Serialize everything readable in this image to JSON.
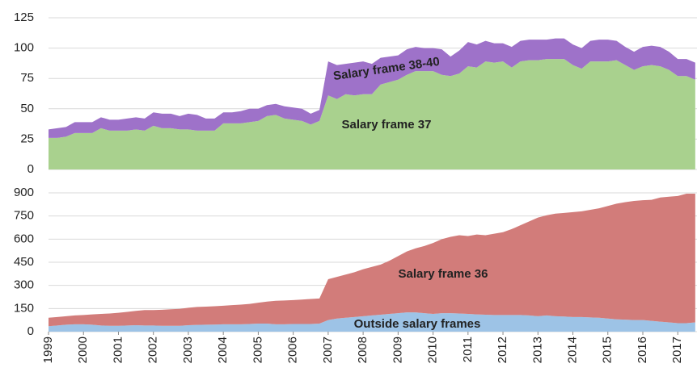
{
  "chart_data": [
    {
      "type": "stacked-area",
      "x": [
        1999,
        1999.25,
        1999.5,
        1999.75,
        2000,
        2000.25,
        2000.5,
        2000.75,
        2001,
        2001.25,
        2001.5,
        2001.75,
        2002,
        2002.25,
        2002.5,
        2002.75,
        2003,
        2003.25,
        2003.5,
        2003.75,
        2004,
        2004.25,
        2004.5,
        2004.75,
        2005,
        2005.25,
        2005.5,
        2005.75,
        2006,
        2006.25,
        2006.5,
        2006.75,
        2007,
        2007.25,
        2007.5,
        2007.75,
        2008,
        2008.25,
        2008.5,
        2008.75,
        2009,
        2009.25,
        2009.5,
        2009.75,
        2010,
        2010.25,
        2010.5,
        2010.75,
        2011,
        2011.25,
        2011.5,
        2011.75,
        2012,
        2012.25,
        2012.5,
        2012.75,
        2013,
        2013.25,
        2013.5,
        2013.75,
        2014,
        2014.25,
        2014.5,
        2014.75,
        2015,
        2015.25,
        2015.5,
        2015.75,
        2016,
        2016.25,
        2016.5,
        2016.75,
        2017,
        2017.25,
        2017.5
      ],
      "xlim": [
        1999,
        2017.55
      ],
      "ylim": [
        0,
        125
      ],
      "yticks": [
        0,
        25,
        50,
        75,
        100,
        125
      ],
      "grid": true,
      "series": [
        {
          "name": "Salary frame 37",
          "color": "#a9d18e",
          "values": [
            26,
            26,
            27,
            30,
            30,
            30,
            34,
            32,
            32,
            32,
            33,
            32,
            36,
            34,
            34,
            33,
            33,
            32,
            32,
            32,
            38,
            38,
            38,
            39,
            40,
            44,
            45,
            42,
            41,
            40,
            37,
            40,
            61,
            58,
            62,
            61,
            62,
            62,
            70,
            72,
            74,
            78,
            81,
            81,
            81,
            78,
            77,
            79,
            85,
            84,
            89,
            88,
            89,
            84,
            89,
            90,
            90,
            91,
            91,
            91,
            86,
            83,
            89,
            89,
            89,
            90,
            86,
            82,
            85,
            86,
            85,
            82,
            77,
            77,
            74
          ]
        },
        {
          "name": "Salary frame 38-40",
          "color": "#9e72c9",
          "values": [
            7,
            8,
            8,
            9,
            9,
            9,
            9,
            9,
            9,
            10,
            10,
            10,
            11,
            12,
            12,
            11,
            13,
            13,
            10,
            10,
            9,
            9,
            10,
            11,
            10,
            9,
            9,
            10,
            10,
            10,
            9,
            9,
            28,
            28,
            25,
            27,
            27,
            25,
            22,
            21,
            20,
            21,
            20,
            19,
            19,
            21,
            16,
            19,
            20,
            19,
            17,
            16,
            15,
            17,
            17,
            17,
            17,
            16,
            17,
            17,
            17,
            17,
            17,
            18,
            18,
            16,
            15,
            15,
            16,
            16,
            16,
            15,
            14,
            14,
            14
          ]
        }
      ]
    },
    {
      "type": "stacked-area",
      "x": [
        1999,
        1999.25,
        1999.5,
        1999.75,
        2000,
        2000.25,
        2000.5,
        2000.75,
        2001,
        2001.25,
        2001.5,
        2001.75,
        2002,
        2002.25,
        2002.5,
        2002.75,
        2003,
        2003.25,
        2003.5,
        2003.75,
        2004,
        2004.25,
        2004.5,
        2004.75,
        2005,
        2005.25,
        2005.5,
        2005.75,
        2006,
        2006.25,
        2006.5,
        2006.75,
        2007,
        2007.25,
        2007.5,
        2007.75,
        2008,
        2008.25,
        2008.5,
        2008.75,
        2009,
        2009.25,
        2009.5,
        2009.75,
        2010,
        2010.25,
        2010.5,
        2010.75,
        2011,
        2011.25,
        2011.5,
        2011.75,
        2012,
        2012.25,
        2012.5,
        2012.75,
        2013,
        2013.25,
        2013.5,
        2013.75,
        2014,
        2014.25,
        2014.5,
        2014.75,
        2015,
        2015.25,
        2015.5,
        2015.75,
        2016,
        2016.25,
        2016.5,
        2016.75,
        2017,
        2017.25,
        2017.5
      ],
      "xlim": [
        1999,
        2017.55
      ],
      "xticks": [
        1999,
        2000,
        2001,
        2002,
        2003,
        2004,
        2005,
        2006,
        2007,
        2008,
        2009,
        2010,
        2011,
        2012,
        2013,
        2014,
        2015,
        2016,
        2017
      ],
      "ylim": [
        0,
        900
      ],
      "yticks": [
        0,
        150,
        300,
        450,
        600,
        750,
        900
      ],
      "grid": true,
      "series": [
        {
          "name": "Outside salary frames",
          "color": "#9dc3e6",
          "values": [
            35,
            40,
            45,
            48,
            48,
            45,
            40,
            38,
            38,
            40,
            42,
            40,
            40,
            38,
            38,
            38,
            42,
            44,
            45,
            46,
            48,
            48,
            48,
            50,
            52,
            52,
            48,
            48,
            50,
            50,
            50,
            52,
            75,
            85,
            90,
            95,
            100,
            105,
            110,
            115,
            120,
            125,
            125,
            120,
            115,
            120,
            120,
            118,
            115,
            112,
            110,
            108,
            108,
            108,
            108,
            105,
            100,
            105,
            100,
            98,
            95,
            95,
            92,
            90,
            85,
            80,
            78,
            75,
            75,
            70,
            65,
            60,
            55,
            55,
            60
          ]
        },
        {
          "name": "Salary frame 36",
          "color": "#d27c7a",
          "values": [
            55,
            55,
            55,
            57,
            60,
            67,
            75,
            80,
            84,
            88,
            93,
            100,
            100,
            104,
            107,
            110,
            113,
            116,
            117,
            119,
            120,
            124,
            127,
            130,
            136,
            143,
            152,
            154,
            155,
            158,
            162,
            163,
            265,
            270,
            280,
            290,
            305,
            315,
            325,
            345,
            370,
            395,
            415,
            435,
            460,
            480,
            495,
            507,
            505,
            518,
            515,
            527,
            537,
            557,
            582,
            610,
            640,
            650,
            665,
            672,
            680,
            685,
            698,
            710,
            730,
            750,
            762,
            773,
            777,
            785,
            805,
            815,
            825,
            840,
            835
          ]
        }
      ]
    }
  ]
}
